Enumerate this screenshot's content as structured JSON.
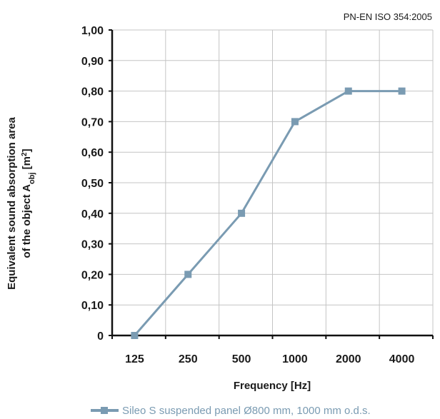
{
  "standard_note": "PN-EN ISO 354:2005",
  "chart_data": {
    "type": "line",
    "categories": [
      "125",
      "250",
      "500",
      "1000",
      "2000",
      "4000"
    ],
    "series": [
      {
        "name": "Sileo S suspended panel Ø800 mm, 1000 mm o.d.s.",
        "values": [
          0.0,
          0.2,
          0.4,
          0.7,
          0.8,
          0.8
        ],
        "color": "#7a9bb2"
      }
    ],
    "xlabel": "Frequency [Hz]",
    "ylabel_line1": "Equivalent sound absorption area",
    "ylabel_line2_prefix": "of the object A",
    "ylabel_line2_sub": "obj",
    "ylabel_line2_unit": " [m",
    "ylabel_line2_sup": "2",
    "ylabel_line2_end": "]",
    "ylim": [
      0,
      1.0
    ],
    "yticks": [
      "0",
      "0,10",
      "0,20",
      "0,30",
      "0,40",
      "0,50",
      "0,60",
      "0,70",
      "0,80",
      "0,90",
      "1,00"
    ],
    "grid": true,
    "legend_position": "bottom"
  }
}
